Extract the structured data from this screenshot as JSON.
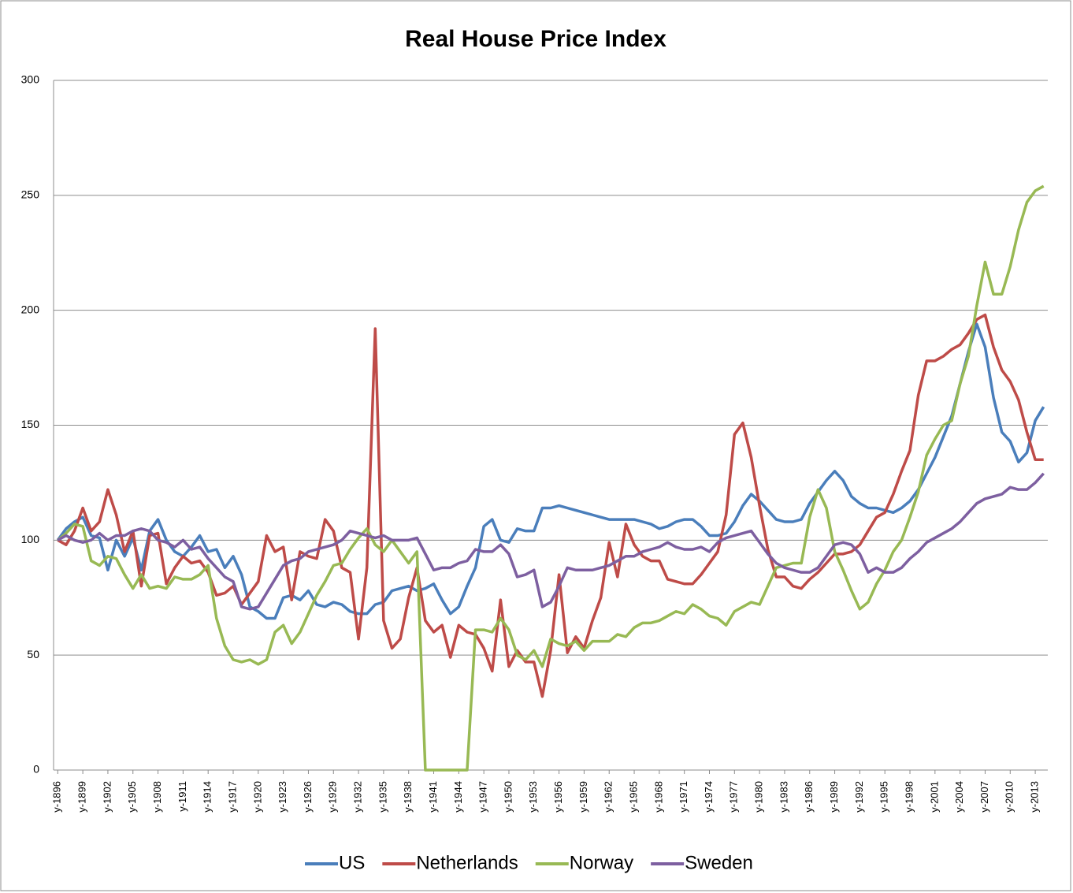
{
  "chart_data": {
    "type": "line",
    "title": "Real House Price Index",
    "categories": [
      "y-1896",
      null,
      null,
      "y-1899",
      null,
      null,
      "y-1902",
      null,
      null,
      "y-1905",
      null,
      null,
      "y-1908",
      null,
      null,
      "y-1911",
      null,
      null,
      "y-1914",
      null,
      null,
      "y-1917",
      null,
      null,
      "y-1920",
      null,
      null,
      "y-1923",
      null,
      null,
      "y-1926",
      null,
      null,
      "y-1929",
      null,
      null,
      "y-1932",
      null,
      null,
      "y-1935",
      null,
      null,
      "y-1938",
      null,
      null,
      "y-1941",
      null,
      null,
      "y-1944",
      null,
      null,
      "y-1947",
      null,
      null,
      "y-1950",
      null,
      null,
      "y-1953",
      null,
      null,
      "y-1956",
      null,
      null,
      "y-1959",
      null,
      null,
      "y-1962",
      null,
      null,
      "y-1965",
      null,
      null,
      "y-1968",
      null,
      null,
      "y-1971",
      null,
      null,
      "y-1974",
      null,
      null,
      "y-1977",
      null,
      null,
      "y-1980",
      null,
      null,
      "y-1983",
      null,
      null,
      "y-1986",
      null,
      null,
      "y-1989",
      null,
      null,
      "y-1992",
      null,
      null,
      "y-1995",
      null,
      null,
      "y-1998",
      null,
      null,
      "y-2001",
      null,
      null,
      "y-2004",
      null,
      null,
      "y-2007",
      null,
      null,
      "y-2010",
      null,
      null,
      "y-2013",
      null
    ],
    "series": [
      {
        "name": "US",
        "color": "#4a7ebb",
        "values": [
          100,
          105,
          108,
          110,
          102,
          101,
          87,
          100,
          93,
          101,
          87,
          104,
          109,
          100,
          95,
          93,
          97,
          102,
          95,
          96,
          88,
          93,
          85,
          71,
          69,
          66,
          66,
          75,
          76,
          74,
          78,
          72,
          71,
          73,
          72,
          69,
          68,
          68,
          72,
          73,
          78,
          79,
          80,
          78,
          79,
          81,
          74,
          68,
          71,
          80,
          88,
          106,
          109,
          100,
          99,
          105,
          104,
          104,
          114,
          114,
          115,
          114,
          113,
          112,
          111,
          110,
          109,
          109,
          109,
          109,
          108,
          107,
          105,
          106,
          108,
          109,
          109,
          106,
          102,
          102,
          103,
          108,
          115,
          120,
          117,
          113,
          109,
          108,
          108,
          109,
          116,
          121,
          126,
          130,
          126,
          119,
          116,
          114,
          114,
          113,
          112,
          114,
          117,
          122,
          129,
          136,
          145,
          154,
          168,
          182,
          194,
          184,
          162,
          147,
          143,
          134,
          138,
          152,
          158
        ]
      },
      {
        "name": "Netherlands",
        "color": "#be4b48",
        "values": [
          100,
          98,
          104,
          114,
          104,
          108,
          122,
          111,
          95,
          104,
          80,
          102,
          103,
          81,
          88,
          93,
          90,
          91,
          86,
          76,
          77,
          80,
          72,
          77,
          82,
          102,
          95,
          97,
          74,
          95,
          93,
          92,
          109,
          104,
          88,
          86,
          57,
          88,
          192,
          65,
          53,
          57,
          75,
          88,
          65,
          60,
          63,
          49,
          63,
          60,
          59,
          53,
          43,
          74,
          45,
          52,
          47,
          47,
          32,
          52,
          85,
          51,
          58,
          53,
          65,
          75,
          99,
          84,
          107,
          98,
          93,
          91,
          91,
          83,
          82,
          81,
          81,
          85,
          90,
          95,
          111,
          146,
          151,
          136,
          115,
          96,
          84,
          84,
          80,
          79,
          83,
          86,
          90,
          94,
          94,
          95,
          98,
          104,
          110,
          112,
          120,
          130,
          139,
          163,
          178,
          178,
          180,
          183,
          185,
          190,
          196,
          198,
          184,
          174,
          169,
          161,
          147,
          135,
          135
        ]
      },
      {
        "name": "Norway",
        "color": "#98b954",
        "values": [
          100,
          103,
          107,
          106,
          91,
          89,
          93,
          92,
          85,
          79,
          85,
          79,
          80,
          79,
          84,
          83,
          83,
          85,
          89,
          66,
          54,
          48,
          47,
          48,
          46,
          48,
          60,
          63,
          55,
          60,
          68,
          76,
          82,
          89,
          90,
          96,
          101,
          105,
          98,
          95,
          100,
          95,
          90,
          95,
          0,
          0,
          0,
          0,
          0,
          0,
          61,
          61,
          60,
          66,
          61,
          50,
          48,
          52,
          45,
          57,
          55,
          54,
          56,
          52,
          56,
          56,
          56,
          59,
          58,
          62,
          64,
          64,
          65,
          67,
          69,
          68,
          72,
          70,
          67,
          66,
          63,
          69,
          71,
          73,
          72,
          80,
          88,
          89,
          90,
          90,
          110,
          122,
          114,
          95,
          87,
          78,
          70,
          73,
          81,
          87,
          95,
          100,
          110,
          121,
          137,
          144,
          150,
          152,
          168,
          180,
          202,
          221,
          207,
          207,
          219,
          235,
          247,
          252,
          254
        ]
      },
      {
        "name": "Sweden",
        "color": "#7d5fa0",
        "values": [
          100,
          102,
          100,
          99,
          100,
          103,
          100,
          102,
          102,
          104,
          105,
          104,
          100,
          99,
          97,
          100,
          96,
          97,
          92,
          88,
          84,
          82,
          71,
          70,
          71,
          77,
          83,
          89,
          91,
          92,
          95,
          96,
          97,
          98,
          100,
          104,
          103,
          102,
          101,
          102,
          100,
          100,
          100,
          101,
          94,
          87,
          88,
          88,
          90,
          91,
          96,
          95,
          95,
          98,
          94,
          84,
          85,
          87,
          71,
          73,
          80,
          88,
          87,
          87,
          87,
          88,
          89,
          91,
          93,
          93,
          95,
          96,
          97,
          99,
          97,
          96,
          96,
          97,
          95,
          99,
          101,
          102,
          103,
          104,
          99,
          94,
          90,
          88,
          87,
          86,
          86,
          88,
          93,
          98,
          99,
          98,
          94,
          86,
          88,
          86,
          86,
          88,
          92,
          95,
          99,
          101,
          103,
          105,
          108,
          112,
          116,
          118,
          119,
          120,
          123,
          122,
          122,
          125,
          129
        ]
      }
    ],
    "ylim": [
      0,
      300
    ],
    "yticks": [
      0,
      50,
      100,
      150,
      200,
      250,
      300
    ],
    "grid": true,
    "legend": "bottom"
  }
}
